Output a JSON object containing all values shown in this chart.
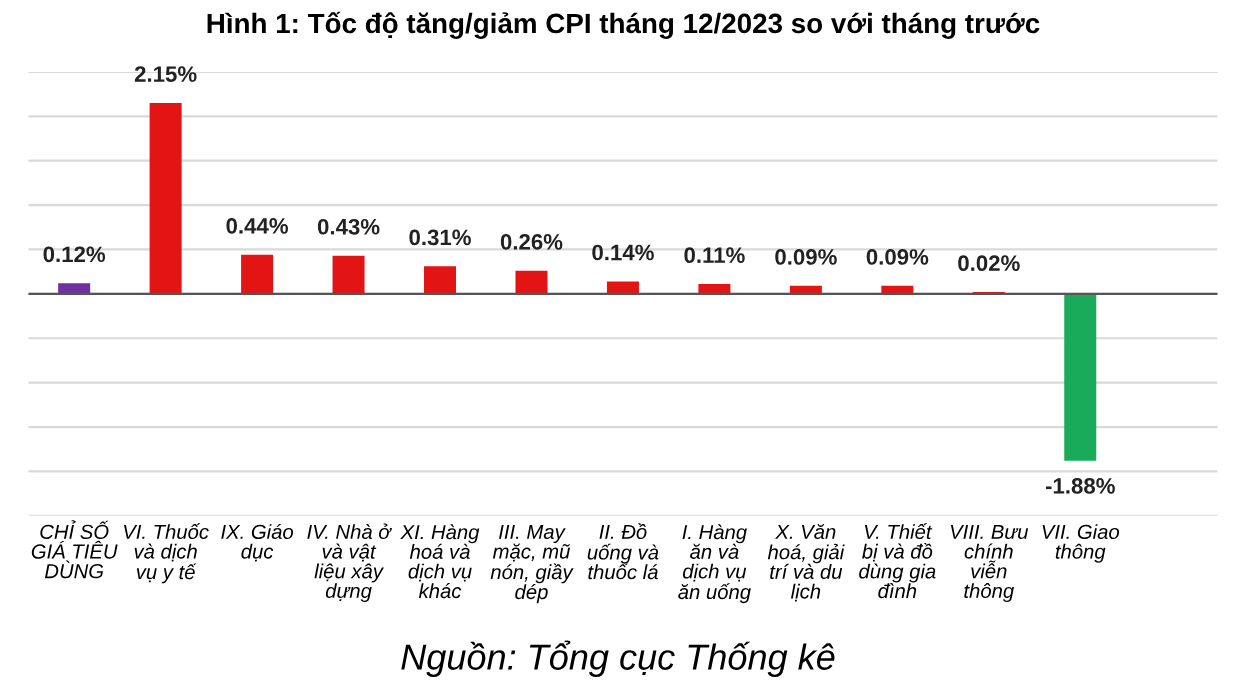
{
  "chart_data": {
    "type": "bar",
    "title": "Hình 1: Tốc độ tăng/giảm CPI tháng 12/2023 so với tháng trước",
    "categories": [
      "CHỈ SỐ GIÁ TIÊU DÙNG",
      "VI. Thuốc và dịch vụ y tế",
      "IX. Giáo dục",
      "IV. Nhà ở và vật liệu xây dựng",
      "XI. Hàng hoá và dịch vụ khác",
      "III. May mặc, mũ nón, giầy dép",
      "II. Đồ uống và thuốc lá",
      "I. Hàng ăn và dịch vụ ăn uống",
      "X. Văn hoá, giải trí và du lịch",
      "V. Thiết bị và đồ dùng gia đình",
      "VIII. Bưu chính viễn thông",
      "VII. Giao thông"
    ],
    "values": [
      0.12,
      2.15,
      0.44,
      0.43,
      0.31,
      0.26,
      0.14,
      0.11,
      0.09,
      0.09,
      0.02,
      -1.88
    ],
    "value_labels": [
      "0.12%",
      "2.15%",
      "0.44%",
      "0.43%",
      "0.31%",
      "0.26%",
      "0.14%",
      "0.11%",
      "0.09%",
      "0.09%",
      "0.02%",
      "-1.88%"
    ],
    "colors": [
      "#7030a0",
      "#e31414",
      "#e31414",
      "#e31414",
      "#e31414",
      "#e31414",
      "#e31414",
      "#e31414",
      "#e31414",
      "#e31414",
      "#e31414",
      "#1aab5a"
    ],
    "ylim": [
      -2.5,
      2.5
    ],
    "yticks": [
      {
        "value": -2.5,
        "label": null
      },
      {
        "value": -2.0,
        "label": null
      },
      {
        "value": -1.5,
        "label": null
      },
      {
        "value": -1.0,
        "label": null
      },
      {
        "value": -0.5,
        "label": null
      },
      {
        "value": 0,
        "label": null
      },
      {
        "value": 0.5,
        "label": null
      },
      {
        "value": 1.0,
        "label": null
      },
      {
        "value": 1.5,
        "label": null
      },
      {
        "value": 2.0,
        "label": null
      },
      {
        "value": 2.5,
        "label": null
      }
    ],
    "grid": "y",
    "annotations": [
      "Nguồn: Tổng cục Thống kê"
    ]
  }
}
